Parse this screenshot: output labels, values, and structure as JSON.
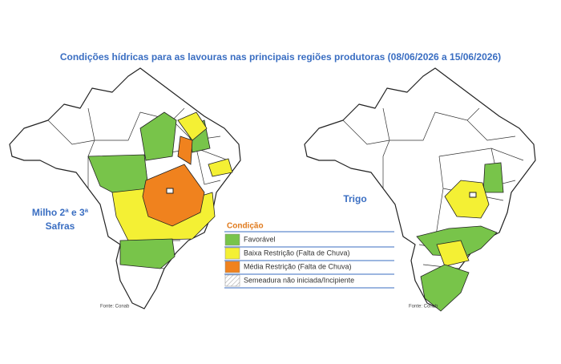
{
  "header": {
    "title": "Condições hídricas para as lavouras nas principais regiões produtoras (08/06/2026 a 15/06/2026)"
  },
  "maps": [
    {
      "label": [
        "Milho 2ª e 3ª",
        "Safras"
      ],
      "source": "Fonte: Conab"
    },
    {
      "label": [
        "Trigo"
      ],
      "source": "Fonte: Conab"
    }
  ],
  "legend": {
    "title": "Condição",
    "items": [
      {
        "label": "Favorável",
        "color": "#78c44a"
      },
      {
        "label": "Baixa Restrição (Falta de Chuva)",
        "color": "#f4f034"
      },
      {
        "label": "Média Restrição (Falta de Chuva)",
        "color": "#f0821e"
      },
      {
        "label": "Semeadura não iniciada/Incipiente",
        "color": "hatch"
      }
    ]
  }
}
